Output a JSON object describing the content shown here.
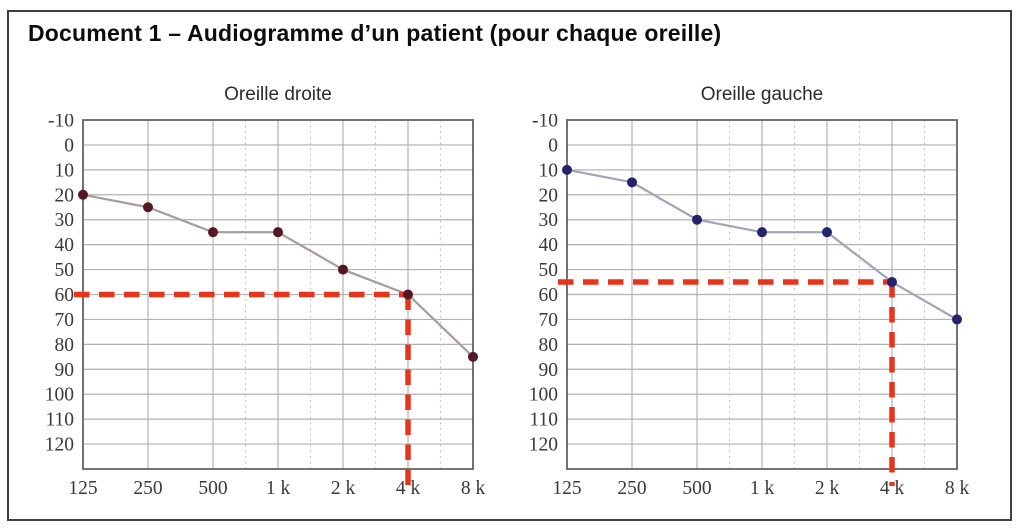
{
  "page": {
    "title": "Document 1 – Audiogramme d’un patient (pour chaque oreille)"
  },
  "colors": {
    "grid": "#b3b1b1",
    "minor_grid": "#c0bebe",
    "plot_border": "#646464",
    "tick_label": "#3a3a3a",
    "page_border": "#3f3f3f",
    "threshold_red": "#e8341b"
  },
  "chart_data": [
    {
      "type": "line",
      "title": "Oreille droite",
      "x_tick_labels": [
        "125",
        "250",
        "500",
        "1 k",
        "2 k",
        "4 k",
        "8 k"
      ],
      "frequencies_hz": [
        125,
        250,
        500,
        1000,
        2000,
        4000,
        8000
      ],
      "values_db": [
        20,
        25,
        35,
        35,
        50,
        60,
        85
      ],
      "y_tick_labels": [
        -10,
        0,
        10,
        20,
        30,
        40,
        50,
        60,
        70,
        80,
        90,
        100,
        110,
        120
      ],
      "ylim": [
        -10,
        130
      ],
      "minor_gridline_positions": [
        2.5,
        3.5,
        4.5,
        5.5
      ],
      "marker_color": "#571722",
      "line_color": "#a89b9b",
      "threshold_marker": {
        "frequency_label": "4 k",
        "x_index": 5,
        "value_db": 60,
        "color": "#e8341b"
      }
    },
    {
      "type": "line",
      "title": "Oreille gauche",
      "x_tick_labels": [
        "125",
        "250",
        "500",
        "1 k",
        "2 k",
        "4 k",
        "8 k"
      ],
      "frequencies_hz": [
        125,
        250,
        500,
        1000,
        2000,
        4000,
        8000
      ],
      "values_db": [
        10,
        15,
        30,
        35,
        35,
        55,
        70
      ],
      "y_tick_labels": [
        -10,
        0,
        10,
        20,
        30,
        40,
        50,
        60,
        70,
        80,
        90,
        100,
        110,
        120
      ],
      "ylim": [
        -10,
        130
      ],
      "minor_gridline_positions": [
        2.5,
        3.5,
        4.5,
        5.5
      ],
      "marker_color": "#23236e",
      "line_color": "#a2a2b8",
      "threshold_marker": {
        "frequency_label": "4 k",
        "x_index": 5,
        "value_db": 55,
        "color": "#e8341b"
      }
    }
  ]
}
